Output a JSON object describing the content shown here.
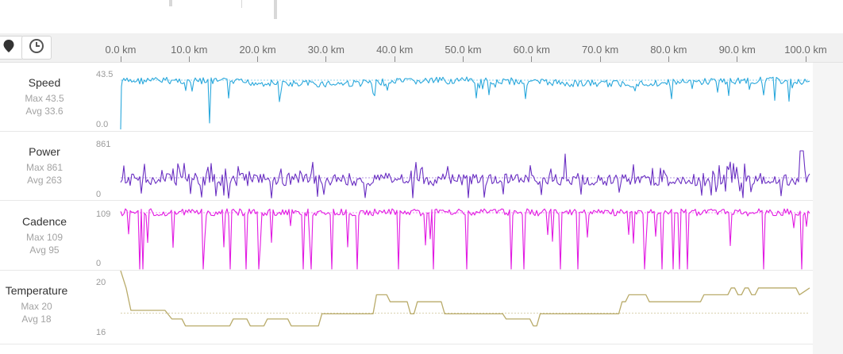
{
  "toolbar": {
    "location_icon": "map-pin-icon",
    "time_icon": "clock-icon"
  },
  "x_axis": {
    "labels": [
      "0.0 km",
      "10.0 km",
      "20.0 km",
      "30.0 km",
      "40.0 km",
      "50.0 km",
      "60.0 km",
      "70.0 km",
      "80.0 km",
      "90.0 km",
      "100.0 km"
    ]
  },
  "panels": [
    {
      "key": "speed",
      "title": "Speed",
      "max_label": "Max 43.5",
      "avg_label": "Avg 33.6",
      "y_top": "43.5",
      "y_bottom": "0.0",
      "color": "#2aa8dc"
    },
    {
      "key": "power",
      "title": "Power",
      "max_label": "Max 861",
      "avg_label": "Avg 263",
      "y_top": "861",
      "y_bottom": "0",
      "color": "#6a2fc2"
    },
    {
      "key": "cadence",
      "title": "Cadence",
      "max_label": "Max 109",
      "avg_label": "Avg 95",
      "y_top": "109",
      "y_bottom": "0",
      "color": "#e21be2"
    },
    {
      "key": "temperature",
      "title": "Temperature",
      "max_label": "Max 20",
      "avg_label": "Avg 18",
      "y_top": "20",
      "y_bottom": "16",
      "color": "#b9ab6a"
    }
  ],
  "chart_data": [
    {
      "type": "line",
      "title": "Speed",
      "x_unit": "km",
      "xlim": [
        0,
        101
      ],
      "ylim": [
        0,
        43.5
      ],
      "summary": {
        "max": 43.5,
        "avg": 33.6
      }
    },
    {
      "type": "line",
      "title": "Power",
      "x_unit": "km",
      "xlim": [
        0,
        101
      ],
      "ylim": [
        0,
        861
      ],
      "summary": {
        "max": 861,
        "avg": 263
      }
    },
    {
      "type": "line",
      "title": "Cadence",
      "x_unit": "km",
      "xlim": [
        0,
        101
      ],
      "ylim": [
        0,
        109
      ],
      "summary": {
        "max": 109,
        "avg": 95
      }
    },
    {
      "type": "line",
      "title": "Temperature",
      "x_unit": "km",
      "xlim": [
        0,
        101
      ],
      "ylim": [
        16,
        20
      ],
      "summary": {
        "max": 20,
        "avg": 18
      },
      "x": [
        0,
        0.8,
        1.5,
        6.5,
        7.5,
        9,
        9.5,
        16,
        16.5,
        18.5,
        19,
        21,
        21.5,
        24.5,
        25,
        29,
        29.5,
        37,
        37.5,
        39,
        39.5,
        42,
        42.5,
        43,
        43.5,
        47,
        47.5,
        56,
        56.5,
        60,
        60.5,
        61,
        61.5,
        73,
        73.5,
        74,
        74.5,
        77,
        77.5,
        78,
        78.5,
        85,
        85.5,
        89,
        89.5,
        90,
        90.5,
        91,
        91.5,
        92,
        92.5,
        93,
        93.5,
        94,
        94.5,
        99,
        99.5,
        101
      ],
      "y": [
        20,
        19,
        17.7,
        17.7,
        17.2,
        17.2,
        16.8,
        16.8,
        17.2,
        17.2,
        16.8,
        16.8,
        17.2,
        17.2,
        16.8,
        16.8,
        17.5,
        17.5,
        18.6,
        18.6,
        18.2,
        18.2,
        17.5,
        17.5,
        18.2,
        18.2,
        17.5,
        17.5,
        17.2,
        17.2,
        16.8,
        16.8,
        17.5,
        17.5,
        18.2,
        18.2,
        18.6,
        18.6,
        18.2,
        18.2,
        18.2,
        18.2,
        18.6,
        18.6,
        19,
        19,
        18.6,
        18.6,
        19,
        19,
        18.6,
        18.6,
        19,
        19,
        19,
        19,
        18.6,
        19
      ]
    }
  ]
}
